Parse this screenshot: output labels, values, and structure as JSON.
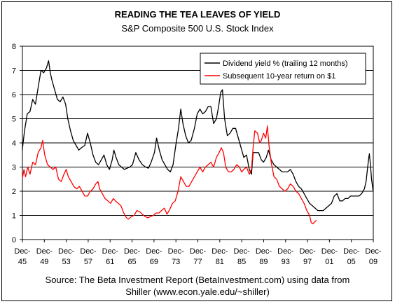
{
  "chart_data": {
    "type": "line",
    "title": "READING THE TEA LEAVES OF YIELD",
    "subtitle": "S&P Composite 500 U.S. Stock Index",
    "source_line1": "Source: The Beta Investment Report (BetaInvestment.com) using data from",
    "source_line2": "Shiller (www.econ.yale.edu/~shiller)",
    "ylim": [
      0,
      8
    ],
    "yticks": [
      "0",
      "1",
      "2",
      "3",
      "4",
      "5",
      "6",
      "7",
      "8"
    ],
    "xlim": [
      1945.92,
      2009.92
    ],
    "xticks": [
      {
        "year": 1945.92,
        "top": "Dec-",
        "bottom": "45"
      },
      {
        "year": 1949.92,
        "top": "Dec-",
        "bottom": "49"
      },
      {
        "year": 1953.92,
        "top": "Dec-",
        "bottom": "53"
      },
      {
        "year": 1957.92,
        "top": "Dec-",
        "bottom": "57"
      },
      {
        "year": 1961.92,
        "top": "Dec-",
        "bottom": "61"
      },
      {
        "year": 1965.92,
        "top": "Dec-",
        "bottom": "65"
      },
      {
        "year": 1969.92,
        "top": "Dec-",
        "bottom": "69"
      },
      {
        "year": 1973.92,
        "top": "Dec-",
        "bottom": "73"
      },
      {
        "year": 1977.92,
        "top": "Dec-",
        "bottom": "77"
      },
      {
        "year": 1981.92,
        "top": "Dec-",
        "bottom": "81"
      },
      {
        "year": 1985.92,
        "top": "Dec-",
        "bottom": "85"
      },
      {
        "year": 1989.92,
        "top": "Dec-",
        "bottom": "89"
      },
      {
        "year": 1993.92,
        "top": "Dec-",
        "bottom": "93"
      },
      {
        "year": 1997.92,
        "top": "Dec-",
        "bottom": "97"
      },
      {
        "year": 2001.92,
        "top": "Dec-",
        "bottom": "01"
      },
      {
        "year": 2005.92,
        "top": "Dec-",
        "bottom": "05"
      },
      {
        "year": 2009.92,
        "top": "Dec-",
        "bottom": "09"
      }
    ],
    "grid": "horizontal",
    "legend_position": "top-right",
    "series": [
      {
        "name": "Dividend yield % (trailing 12 months)",
        "color": "#000000",
        "points": [
          [
            1945.9,
            3.7
          ],
          [
            1946.3,
            4.5
          ],
          [
            1946.8,
            5.2
          ],
          [
            1947.3,
            5.3
          ],
          [
            1947.8,
            5.8
          ],
          [
            1948.3,
            5.6
          ],
          [
            1948.8,
            6.3
          ],
          [
            1949.3,
            7.0
          ],
          [
            1949.8,
            6.9
          ],
          [
            1950.3,
            7.1
          ],
          [
            1950.7,
            7.4
          ],
          [
            1951.0,
            6.9
          ],
          [
            1951.3,
            6.6
          ],
          [
            1951.8,
            6.2
          ],
          [
            1952.3,
            5.8
          ],
          [
            1952.8,
            5.7
          ],
          [
            1953.3,
            5.9
          ],
          [
            1953.8,
            5.6
          ],
          [
            1954.2,
            5.0
          ],
          [
            1954.7,
            4.5
          ],
          [
            1955.2,
            4.1
          ],
          [
            1955.7,
            3.9
          ],
          [
            1956.2,
            3.7
          ],
          [
            1956.7,
            3.8
          ],
          [
            1957.3,
            3.9
          ],
          [
            1957.8,
            4.4
          ],
          [
            1958.3,
            4.0
          ],
          [
            1958.8,
            3.5
          ],
          [
            1959.3,
            3.2
          ],
          [
            1959.8,
            3.1
          ],
          [
            1960.3,
            3.3
          ],
          [
            1960.8,
            3.5
          ],
          [
            1961.3,
            3.1
          ],
          [
            1961.8,
            2.9
          ],
          [
            1962.3,
            3.3
          ],
          [
            1962.6,
            3.7
          ],
          [
            1963.0,
            3.4
          ],
          [
            1963.5,
            3.1
          ],
          [
            1964.0,
            3.0
          ],
          [
            1964.5,
            2.9
          ],
          [
            1965.0,
            2.95
          ],
          [
            1965.5,
            3.0
          ],
          [
            1966.0,
            3.1
          ],
          [
            1966.6,
            3.6
          ],
          [
            1967.2,
            3.3
          ],
          [
            1967.8,
            3.1
          ],
          [
            1968.4,
            3.0
          ],
          [
            1968.9,
            2.95
          ],
          [
            1969.4,
            3.2
          ],
          [
            1970.0,
            3.6
          ],
          [
            1970.4,
            4.2
          ],
          [
            1970.9,
            3.7
          ],
          [
            1971.4,
            3.3
          ],
          [
            1971.9,
            3.1
          ],
          [
            1972.4,
            2.9
          ],
          [
            1972.9,
            2.8
          ],
          [
            1973.4,
            3.1
          ],
          [
            1973.9,
            3.9
          ],
          [
            1974.4,
            4.6
          ],
          [
            1974.8,
            5.4
          ],
          [
            1975.2,
            4.8
          ],
          [
            1975.7,
            4.3
          ],
          [
            1976.2,
            4.0
          ],
          [
            1976.7,
            4.1
          ],
          [
            1977.3,
            4.6
          ],
          [
            1977.8,
            5.2
          ],
          [
            1978.3,
            5.4
          ],
          [
            1978.8,
            5.2
          ],
          [
            1979.3,
            5.3
          ],
          [
            1979.8,
            5.5
          ],
          [
            1980.3,
            5.5
          ],
          [
            1980.8,
            4.8
          ],
          [
            1981.3,
            5.0
          ],
          [
            1981.7,
            5.5
          ],
          [
            1982.1,
            6.1
          ],
          [
            1982.4,
            6.2
          ],
          [
            1982.8,
            5.0
          ],
          [
            1983.3,
            4.3
          ],
          [
            1983.8,
            4.4
          ],
          [
            1984.3,
            4.6
          ],
          [
            1984.8,
            4.6
          ],
          [
            1985.3,
            4.2
          ],
          [
            1985.8,
            3.8
          ],
          [
            1986.3,
            3.4
          ],
          [
            1986.8,
            3.5
          ],
          [
            1987.3,
            2.9
          ],
          [
            1987.7,
            2.7
          ],
          [
            1988.0,
            3.6
          ],
          [
            1988.5,
            3.6
          ],
          [
            1989.0,
            3.6
          ],
          [
            1989.5,
            3.3
          ],
          [
            1989.9,
            3.2
          ],
          [
            1990.4,
            3.4
          ],
          [
            1990.8,
            3.7
          ],
          [
            1991.3,
            3.3
          ],
          [
            1991.8,
            3.1
          ],
          [
            1992.3,
            3.0
          ],
          [
            1992.8,
            2.9
          ],
          [
            1993.3,
            2.8
          ],
          [
            1993.8,
            2.8
          ],
          [
            1994.3,
            2.8
          ],
          [
            1994.8,
            2.9
          ],
          [
            1995.3,
            2.7
          ],
          [
            1995.8,
            2.4
          ],
          [
            1996.3,
            2.2
          ],
          [
            1996.8,
            2.1
          ],
          [
            1997.3,
            1.9
          ],
          [
            1997.8,
            1.7
          ],
          [
            1998.3,
            1.5
          ],
          [
            1998.8,
            1.4
          ],
          [
            1999.3,
            1.3
          ],
          [
            1999.8,
            1.2
          ],
          [
            2000.3,
            1.2
          ],
          [
            2000.8,
            1.2
          ],
          [
            2001.3,
            1.3
          ],
          [
            2001.8,
            1.4
          ],
          [
            2002.3,
            1.5
          ],
          [
            2002.8,
            1.8
          ],
          [
            2003.3,
            1.9
          ],
          [
            2003.8,
            1.6
          ],
          [
            2004.3,
            1.6
          ],
          [
            2004.8,
            1.7
          ],
          [
            2005.3,
            1.7
          ],
          [
            2005.8,
            1.8
          ],
          [
            2006.3,
            1.8
          ],
          [
            2006.8,
            1.8
          ],
          [
            2007.3,
            1.8
          ],
          [
            2007.8,
            1.9
          ],
          [
            2008.3,
            2.1
          ],
          [
            2008.6,
            2.4
          ],
          [
            2008.9,
            3.0
          ],
          [
            2009.1,
            3.4
          ],
          [
            2009.2,
            3.55
          ],
          [
            2009.4,
            3.1
          ],
          [
            2009.6,
            2.5
          ],
          [
            2009.9,
            2.0
          ]
        ]
      },
      {
        "name": "Subsequent 10-year return on $1",
        "color": "#ff0000",
        "points": [
          [
            1945.9,
            2.5
          ],
          [
            1946.2,
            2.9
          ],
          [
            1946.5,
            2.6
          ],
          [
            1946.9,
            3.0
          ],
          [
            1947.3,
            2.7
          ],
          [
            1947.8,
            3.2
          ],
          [
            1948.3,
            3.1
          ],
          [
            1948.8,
            3.6
          ],
          [
            1949.3,
            3.8
          ],
          [
            1949.6,
            4.1
          ],
          [
            1950.0,
            3.5
          ],
          [
            1950.5,
            3.1
          ],
          [
            1951.0,
            3.0
          ],
          [
            1951.5,
            2.9
          ],
          [
            1952.0,
            3.0
          ],
          [
            1952.5,
            2.5
          ],
          [
            1953.0,
            2.4
          ],
          [
            1953.5,
            2.7
          ],
          [
            1953.9,
            2.9
          ],
          [
            1954.3,
            2.6
          ],
          [
            1954.8,
            2.4
          ],
          [
            1955.3,
            2.2
          ],
          [
            1955.8,
            2.1
          ],
          [
            1956.3,
            2.2
          ],
          [
            1956.8,
            2.0
          ],
          [
            1957.3,
            1.8
          ],
          [
            1957.8,
            1.8
          ],
          [
            1958.3,
            2.0
          ],
          [
            1958.8,
            2.1
          ],
          [
            1959.3,
            2.3
          ],
          [
            1959.7,
            2.4
          ],
          [
            1960.0,
            2.1
          ],
          [
            1960.5,
            1.9
          ],
          [
            1961.0,
            1.7
          ],
          [
            1961.5,
            1.6
          ],
          [
            1962.0,
            1.5
          ],
          [
            1962.5,
            1.7
          ],
          [
            1962.9,
            1.6
          ],
          [
            1963.4,
            1.5
          ],
          [
            1963.9,
            1.4
          ],
          [
            1964.4,
            1.1
          ],
          [
            1964.9,
            0.9
          ],
          [
            1965.3,
            0.85
          ],
          [
            1965.8,
            0.95
          ],
          [
            1966.3,
            1.0
          ],
          [
            1966.8,
            1.2
          ],
          [
            1967.3,
            1.15
          ],
          [
            1967.8,
            1.05
          ],
          [
            1968.3,
            0.95
          ],
          [
            1968.8,
            0.9
          ],
          [
            1969.3,
            0.95
          ],
          [
            1969.8,
            1.0
          ],
          [
            1970.3,
            1.1
          ],
          [
            1970.8,
            1.1
          ],
          [
            1971.3,
            1.2
          ],
          [
            1971.8,
            1.3
          ],
          [
            1972.3,
            1.05
          ],
          [
            1972.8,
            1.25
          ],
          [
            1973.3,
            1.5
          ],
          [
            1973.8,
            1.6
          ],
          [
            1974.3,
            2.0
          ],
          [
            1974.8,
            2.6
          ],
          [
            1975.3,
            2.4
          ],
          [
            1975.8,
            2.2
          ],
          [
            1976.3,
            2.2
          ],
          [
            1976.8,
            2.4
          ],
          [
            1977.3,
            2.6
          ],
          [
            1977.8,
            2.8
          ],
          [
            1978.3,
            3.0
          ],
          [
            1978.8,
            2.8
          ],
          [
            1979.3,
            3.0
          ],
          [
            1979.8,
            3.1
          ],
          [
            1980.3,
            3.2
          ],
          [
            1980.8,
            3.0
          ],
          [
            1981.3,
            3.4
          ],
          [
            1981.8,
            3.6
          ],
          [
            1982.2,
            3.8
          ],
          [
            1982.6,
            3.6
          ],
          [
            1983.0,
            3.0
          ],
          [
            1983.5,
            2.8
          ],
          [
            1984.0,
            2.8
          ],
          [
            1984.5,
            2.9
          ],
          [
            1985.0,
            3.1
          ],
          [
            1985.5,
            3.0
          ],
          [
            1985.9,
            2.8
          ],
          [
            1986.3,
            2.9
          ],
          [
            1986.8,
            3.0
          ],
          [
            1987.3,
            2.7
          ],
          [
            1987.7,
            2.9
          ],
          [
            1988.0,
            3.8
          ],
          [
            1988.3,
            4.5
          ],
          [
            1988.8,
            4.4
          ],
          [
            1989.2,
            4.0
          ],
          [
            1989.5,
            4.1
          ],
          [
            1989.9,
            4.4
          ],
          [
            1990.3,
            4.2
          ],
          [
            1990.6,
            4.7
          ],
          [
            1990.9,
            3.9
          ],
          [
            1991.3,
            3.2
          ],
          [
            1991.8,
            2.6
          ],
          [
            1992.3,
            2.5
          ],
          [
            1992.8,
            2.2
          ],
          [
            1993.3,
            2.1
          ],
          [
            1993.8,
            2.0
          ],
          [
            1994.3,
            2.1
          ],
          [
            1994.8,
            2.3
          ],
          [
            1995.3,
            2.2
          ],
          [
            1995.8,
            2.0
          ],
          [
            1996.3,
            1.9
          ],
          [
            1996.8,
            1.7
          ],
          [
            1997.3,
            1.5
          ],
          [
            1997.8,
            1.2
          ],
          [
            1998.3,
            1.0
          ],
          [
            1998.6,
            0.7
          ],
          [
            1998.9,
            0.65
          ],
          [
            1999.3,
            0.75
          ],
          [
            1999.6,
            0.8
          ]
        ]
      }
    ]
  }
}
